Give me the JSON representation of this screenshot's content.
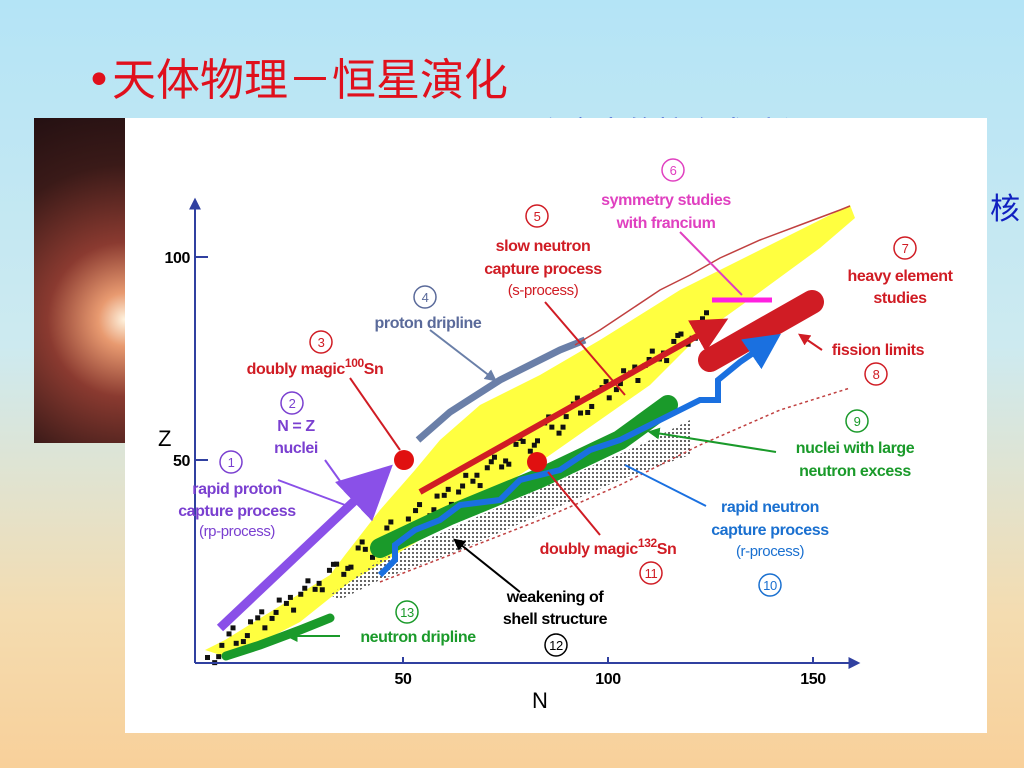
{
  "slide": {
    "title": "•天体物理－恒星演化",
    "hidden_text": "宇宙中的核合成过程",
    "edge_text": "核"
  },
  "diagram": {
    "x_label": "N",
    "y_label": "Z",
    "x_ticks": [
      50,
      100,
      150
    ],
    "y_ticks": [
      50,
      100
    ],
    "annotations": [
      {
        "number": "1",
        "lines": [
          "rapid proton",
          "capture process"
        ],
        "sub": "(rp-process)"
      },
      {
        "number": "2",
        "lines": [
          "N = Z",
          "nuclei"
        ]
      },
      {
        "number": "3",
        "lines": [
          "doubly magic"
        ],
        "sup": "100",
        "suffix": "Sn"
      },
      {
        "number": "4",
        "lines": [
          "proton dripline"
        ]
      },
      {
        "number": "5",
        "lines": [
          "slow neutron",
          "capture process"
        ],
        "sub": "(s-process)"
      },
      {
        "number": "6",
        "lines": [
          "symmetry studies",
          "with francium"
        ]
      },
      {
        "number": "7",
        "lines": [
          "heavy element",
          "studies"
        ]
      },
      {
        "number": "8",
        "lines": [
          "fission limits"
        ]
      },
      {
        "number": "9",
        "lines": [
          "nuclei with large",
          "neutron excess"
        ]
      },
      {
        "number": "10",
        "lines": [
          "rapid neutron",
          "capture process"
        ],
        "sub": "(r-process)"
      },
      {
        "number": "11",
        "lines": [
          "doubly magic"
        ],
        "sup": "132",
        "suffix": "Sn"
      },
      {
        "number": "12",
        "lines": [
          "weakening of",
          "shell structure"
        ]
      },
      {
        "number": "13",
        "lines": [
          "neutron dripline"
        ]
      }
    ]
  }
}
